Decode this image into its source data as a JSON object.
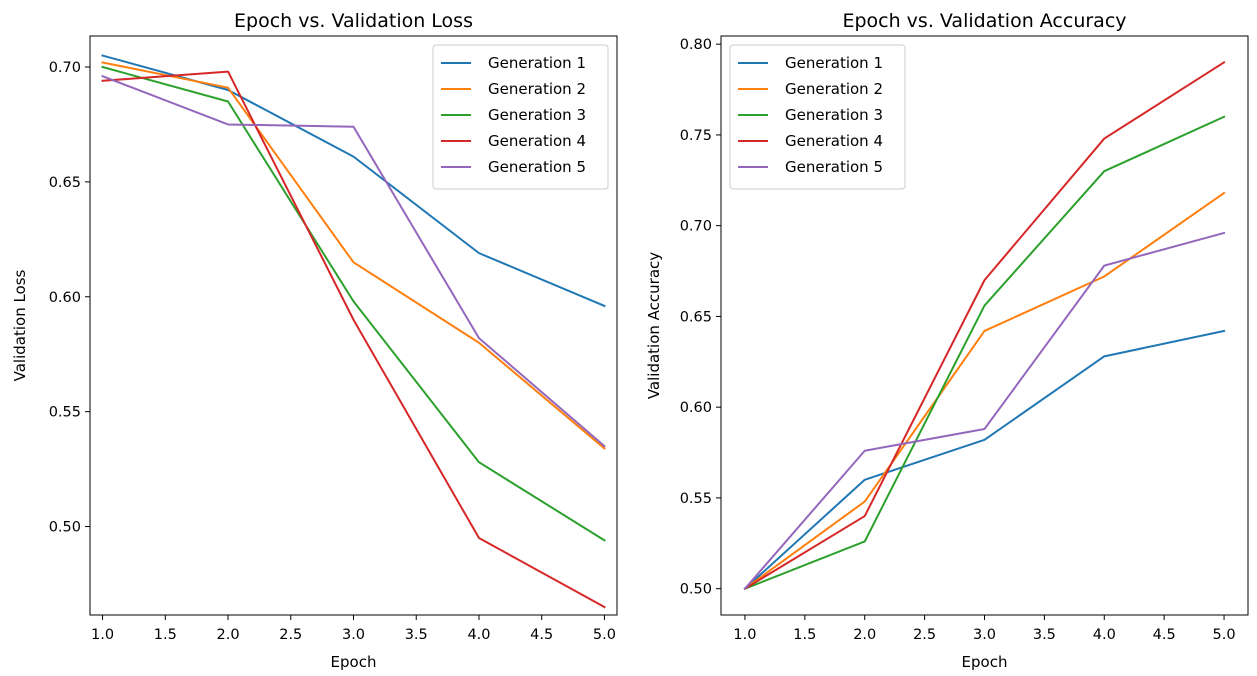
{
  "colors": {
    "series": [
      "#1f77b4",
      "#ff7f0e",
      "#2ca02c",
      "#d62728",
      "#9467bd"
    ],
    "axis": "#000000",
    "legend_border": "#cccccc"
  },
  "chart_data": [
    {
      "type": "line",
      "title": "Epoch vs. Validation Loss",
      "xlabel": "Epoch",
      "ylabel": "Validation Loss",
      "xlim": [
        0.9,
        5.1
      ],
      "ylim": [
        0.4615,
        0.7135
      ],
      "xticks": [
        1.0,
        1.5,
        2.0,
        2.5,
        3.0,
        3.5,
        4.0,
        4.5,
        5.0
      ],
      "xtick_labels": [
        "1.0",
        "1.5",
        "2.0",
        "2.5",
        "3.0",
        "3.5",
        "4.0",
        "4.5",
        "5.0"
      ],
      "yticks": [
        0.5,
        0.55,
        0.6,
        0.65,
        0.7
      ],
      "ytick_labels": [
        "0.50",
        "0.55",
        "0.60",
        "0.65",
        "0.70"
      ],
      "grid": false,
      "legend_position": "upper right",
      "x": [
        1,
        2,
        3,
        4,
        5
      ],
      "series": [
        {
          "name": "Generation 1",
          "values": [
            0.705,
            0.69,
            0.661,
            0.619,
            0.596
          ]
        },
        {
          "name": "Generation 2",
          "values": [
            0.702,
            0.691,
            0.615,
            0.58,
            0.534
          ]
        },
        {
          "name": "Generation 3",
          "values": [
            0.7,
            0.685,
            0.598,
            0.528,
            0.494
          ]
        },
        {
          "name": "Generation 4",
          "values": [
            0.694,
            0.698,
            0.59,
            0.495,
            0.465
          ]
        },
        {
          "name": "Generation 5",
          "values": [
            0.696,
            0.675,
            0.674,
            0.582,
            0.535
          ]
        }
      ]
    },
    {
      "type": "line",
      "title": "Epoch vs. Validation Accuracy",
      "xlabel": "Epoch",
      "ylabel": "Validation Accuracy",
      "xlim": [
        0.8,
        5.2
      ],
      "ylim": [
        0.4855,
        0.8045
      ],
      "xticks": [
        1.0,
        1.5,
        2.0,
        2.5,
        3.0,
        3.5,
        4.0,
        4.5,
        5.0
      ],
      "xtick_labels": [
        "1.0",
        "1.5",
        "2.0",
        "2.5",
        "3.0",
        "3.5",
        "4.0",
        "4.5",
        "5.0"
      ],
      "yticks": [
        0.5,
        0.55,
        0.6,
        0.65,
        0.7,
        0.75,
        0.8
      ],
      "ytick_labels": [
        "0.50",
        "0.55",
        "0.60",
        "0.65",
        "0.70",
        "0.75",
        "0.80"
      ],
      "grid": false,
      "legend_position": "upper left",
      "x": [
        1,
        2,
        3,
        4,
        5
      ],
      "series": [
        {
          "name": "Generation 1",
          "values": [
            0.5,
            0.56,
            0.582,
            0.628,
            0.642
          ]
        },
        {
          "name": "Generation 2",
          "values": [
            0.5,
            0.548,
            0.642,
            0.672,
            0.718
          ]
        },
        {
          "name": "Generation 3",
          "values": [
            0.5,
            0.526,
            0.656,
            0.73,
            0.76
          ]
        },
        {
          "name": "Generation 4",
          "values": [
            0.5,
            0.54,
            0.67,
            0.748,
            0.79
          ]
        },
        {
          "name": "Generation 5",
          "values": [
            0.5,
            0.576,
            0.588,
            0.678,
            0.696
          ]
        }
      ]
    }
  ]
}
